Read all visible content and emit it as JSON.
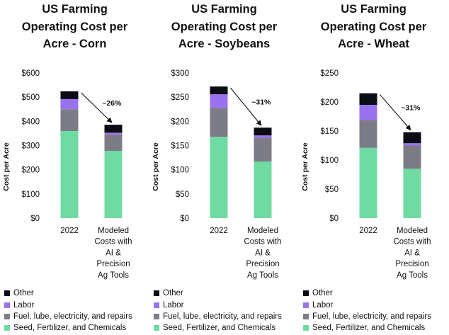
{
  "chart_data": [
    {
      "type": "bar",
      "stacked": true,
      "title_lines": [
        "US Farming",
        "Operating Cost per",
        "Acre - Corn"
      ],
      "ylabel": "Cost per Acre",
      "ylim": [
        0,
        600
      ],
      "yticks": [
        0,
        100,
        200,
        300,
        400,
        500,
        600
      ],
      "ytick_labels": [
        "$0",
        "$100",
        "$200",
        "$300",
        "$400",
        "$500",
        "$600"
      ],
      "categories": [
        [
          "2022"
        ],
        [
          "Modeled",
          "Costs with",
          "AI &",
          "Precision",
          "Ag Tools"
        ]
      ],
      "series": [
        {
          "name": "Seed, Fertilizer, and Chemicals",
          "color": "#6fdba3",
          "values": [
            360,
            278
          ]
        },
        {
          "name": "Fuel, lube, electricity, and repairs",
          "color": "#7c7c86",
          "values": [
            90,
            68
          ]
        },
        {
          "name": "Labor",
          "color": "#9a72f0",
          "values": [
            42,
            7
          ]
        },
        {
          "name": "Other",
          "color": "#0c0c14",
          "values": [
            32,
            33
          ]
        }
      ],
      "annotation": "~26%"
    },
    {
      "type": "bar",
      "stacked": true,
      "title_lines": [
        "US Farming",
        "Operating Cost per",
        "Acre - Soybeans"
      ],
      "ylabel": "Cost per Acre",
      "ylim": [
        0,
        300
      ],
      "yticks": [
        0,
        50,
        100,
        150,
        200,
        250,
        300
      ],
      "ytick_labels": [
        "$0",
        "$50",
        "$100",
        "$150",
        "$200",
        "$250",
        "$300"
      ],
      "categories": [
        [
          "2022"
        ],
        [
          "Modeled",
          "Costs with",
          "AI &",
          "Precision",
          "Ag Tools"
        ]
      ],
      "series": [
        {
          "name": "Seed, Fertilizer, and Chemicals",
          "color": "#6fdba3",
          "values": [
            168,
            117
          ]
        },
        {
          "name": "Fuel, lube, electricity, and repairs",
          "color": "#7c7c86",
          "values": [
            60,
            49
          ]
        },
        {
          "name": "Labor",
          "color": "#9a72f0",
          "values": [
            28,
            5
          ]
        },
        {
          "name": "Other",
          "color": "#0c0c14",
          "values": [
            16,
            16
          ]
        }
      ],
      "annotation": "~31%"
    },
    {
      "type": "bar",
      "stacked": true,
      "title_lines": [
        "US Farming",
        "Operating Cost per",
        "Acre - Wheat"
      ],
      "ylabel": "Cost per Acre",
      "ylim": [
        0,
        250
      ],
      "yticks": [
        0,
        50,
        100,
        150,
        200,
        250
      ],
      "ytick_labels": [
        "$0",
        "$50",
        "$100",
        "$150",
        "$200",
        "$250"
      ],
      "categories": [
        [
          "2022"
        ],
        [
          "Modeled",
          "Costs with",
          "AI &",
          "Precision",
          "Ag Tools"
        ]
      ],
      "series": [
        {
          "name": "Seed, Fertilizer, and Chemicals",
          "color": "#6fdba3",
          "values": [
            121,
            85
          ]
        },
        {
          "name": "Fuel, lube, electricity, and repairs",
          "color": "#7c7c86",
          "values": [
            48,
            40
          ]
        },
        {
          "name": "Labor",
          "color": "#9a72f0",
          "values": [
            26,
            4
          ]
        },
        {
          "name": "Other",
          "color": "#0c0c14",
          "values": [
            20,
            19
          ]
        }
      ],
      "annotation": "~31%"
    }
  ],
  "legend": {
    "items": [
      {
        "label": "Other",
        "color": "#0c0c14"
      },
      {
        "label": "Labor",
        "color": "#9a72f0"
      },
      {
        "label": "Fuel, lube, electricity, and repairs",
        "color": "#7c7c86"
      },
      {
        "label": "Seed, Fertilizer, and Chemicals",
        "color": "#6fdba3"
      }
    ]
  }
}
